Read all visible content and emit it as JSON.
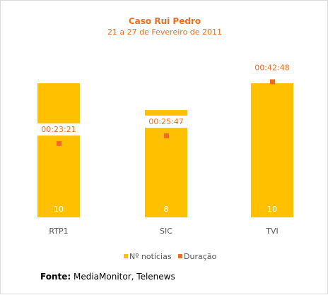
{
  "chart_data": {
    "type": "bar",
    "title": "Caso Rui Pedro",
    "subtitle": "21 a 27 de Fevereiro de 2011",
    "categories": [
      "RTP1",
      "SIC",
      "TVI"
    ],
    "series": [
      {
        "name": "Nº notícias",
        "kind": "bar",
        "values": [
          10,
          8,
          10
        ],
        "color": "#ffc000"
      },
      {
        "name": "Duração",
        "kind": "point",
        "values": [
          "00:23:21",
          "00:25:47",
          "00:42:48"
        ],
        "seconds": [
          1401,
          1547,
          2568
        ],
        "color": "#f26c1f"
      }
    ],
    "bar_ylim": [
      0,
      10
    ],
    "point_ylim": [
      0,
      2600
    ],
    "legend_position": "bottom",
    "grid": false
  },
  "source": {
    "label": "Fonte:",
    "text": " MediaMonitor, Telenews"
  },
  "colors": {
    "title": "#f26c1f",
    "bar": "#ffc000",
    "point": "#f26c1f",
    "axis_text": "#555555",
    "bar_label": "#ffffff"
  }
}
